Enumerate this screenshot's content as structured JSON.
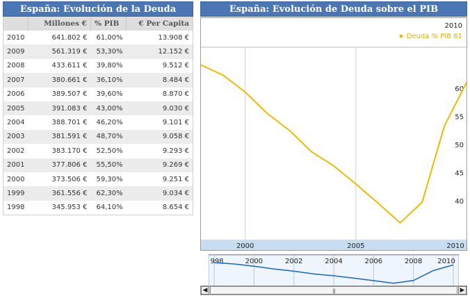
{
  "left": {
    "title": "España: Evolución de la Deuda",
    "headers": [
      "",
      "Millones €",
      "% PIB",
      "€ Per Capita"
    ],
    "rows": [
      [
        "2010",
        "641.802 €",
        "61,00%",
        "13.908 €"
      ],
      [
        "2009",
        "561.319 €",
        "53,30%",
        "12.152 €"
      ],
      [
        "2008",
        "433.611 €",
        "39,80%",
        "9.512 €"
      ],
      [
        "2007",
        "380.661 €",
        "36,10%",
        "8.484 €"
      ],
      [
        "2006",
        "389.507 €",
        "39,60%",
        "8.870 €"
      ],
      [
        "2005",
        "391.083 €",
        "43,00%",
        "9.030 €"
      ],
      [
        "2004",
        "388.701 €",
        "46,20%",
        "9.101 €"
      ],
      [
        "2003",
        "381.591 €",
        "48,70%",
        "9.058 €"
      ],
      [
        "2002",
        "383.170 €",
        "52,50%",
        "9.293 €"
      ],
      [
        "2001",
        "377.806 €",
        "55,50%",
        "9.269 €"
      ],
      [
        "2000",
        "373.506 €",
        "59,30%",
        "9.251 €"
      ],
      [
        "1999",
        "361.556 €",
        "62,30%",
        "9.034 €"
      ],
      [
        "1998",
        "345.953 €",
        "64,10%",
        "8.654 €"
      ]
    ]
  },
  "right": {
    "title": "España: Evolución de Deuda sobre el PIB",
    "date_readout": "2010",
    "legend_label": "Deuda % PIB 61",
    "scrollbar_grip": "|||",
    "scroll_left_glyph": "◀",
    "scroll_right_glyph": "▶"
  },
  "colors": {
    "header_bg": "#4a77b4",
    "line": "#f0b800",
    "nav_line": "#1a63c9"
  },
  "chart_data": {
    "type": "line",
    "title": "España: Evolución de Deuda sobre el PIB",
    "series": [
      {
        "name": "Deuda % PIB",
        "x": [
          1998,
          1999,
          2000,
          2001,
          2002,
          2003,
          2004,
          2005,
          2006,
          2007,
          2008,
          2009,
          2010
        ],
        "values": [
          64.1,
          62.3,
          59.3,
          55.5,
          52.5,
          48.7,
          46.2,
          43.0,
          39.6,
          36.1,
          39.8,
          53.3,
          61.0
        ]
      }
    ],
    "y_ticks": [
      "40",
      "45",
      "50",
      "55",
      "60"
    ],
    "x_ticks": [
      "2000",
      "2005",
      "2010"
    ],
    "nav_ticks": [
      "998",
      "2000",
      "2002",
      "2004",
      "2006",
      "2008",
      "2010"
    ],
    "ylim": [
      33,
      67
    ],
    "xlim": [
      1998,
      2010
    ]
  }
}
